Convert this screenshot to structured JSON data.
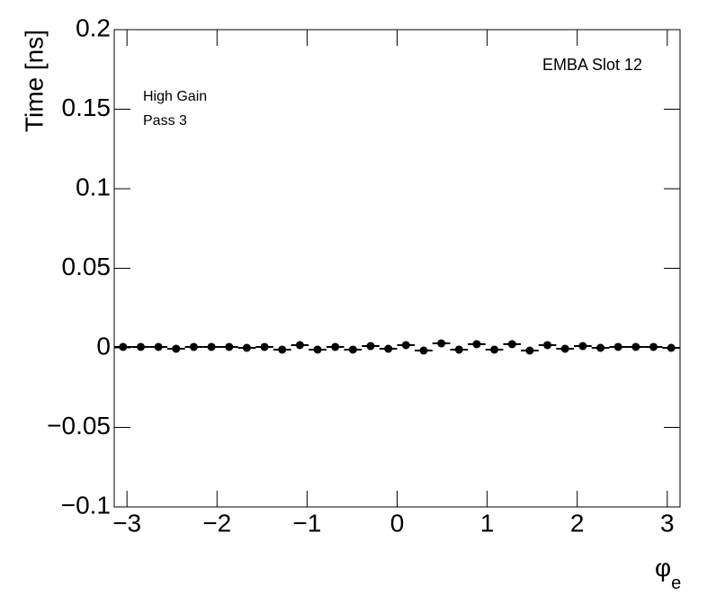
{
  "chart_data": {
    "type": "scatter",
    "annotations": [
      "EMBA Slot 12",
      "High Gain",
      "Pass 3"
    ],
    "ylabel": "Time [ns]",
    "xlabel": "φ",
    "xlabel_sub": "e",
    "x": [
      -3.0434,
      -2.8471,
      -2.6507,
      -2.4544,
      -2.258,
      -2.0617,
      -1.8653,
      -1.669,
      -1.4726,
      -1.2763,
      -1.0799,
      -0.8836,
      -0.6872,
      -0.4909,
      -0.2945,
      -0.0982,
      0.0982,
      0.2945,
      0.4909,
      0.6872,
      0.8836,
      1.0799,
      1.2763,
      1.4726,
      1.669,
      1.8653,
      2.0617,
      2.258,
      2.4544,
      2.6507,
      2.8471,
      3.0434
    ],
    "xerr": 0.0982,
    "series": [
      {
        "color": "#000000",
        "values": [
          0.0006,
          0.0006,
          0.0006,
          -0.0006,
          0.0006,
          0.0006,
          0.0006,
          0,
          0.0006,
          -0.0011,
          0.0017,
          -0.0011,
          0.0006,
          -0.0011,
          0.0011,
          -0.0006,
          0.0017,
          -0.0017,
          0.0028,
          -0.0011,
          0.0023,
          -0.0011,
          0.0023,
          -0.0017,
          0.0017,
          -0.0006,
          0.0011,
          0,
          0.0006,
          0.0006,
          0.0006,
          0
        ]
      }
    ],
    "xlim": [
      -3.1416,
      3.1416
    ],
    "ylim": [
      -0.1,
      0.2
    ],
    "xticks": [
      {
        "value": -3,
        "label": "−3"
      },
      {
        "value": -2,
        "label": "−2"
      },
      {
        "value": -1,
        "label": "−1"
      },
      0,
      1,
      2,
      3
    ],
    "yticks": [
      {
        "value": -0.1,
        "label": "−0.1"
      },
      {
        "value": -0.05,
        "label": "−0.05"
      },
      0,
      0.05,
      0.1,
      0.15,
      0.2
    ]
  }
}
